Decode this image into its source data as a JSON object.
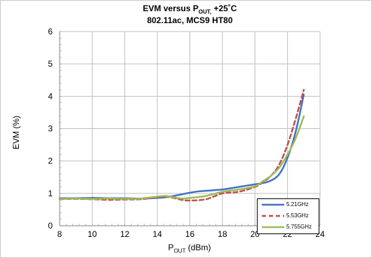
{
  "chart_data": {
    "type": "line",
    "title_line1_main": "EVM versus P",
    "title_line1_sub": "OUT,",
    "title_line1_rest": " +25˚C",
    "title_line2": "802.11ac, MCS9 HT80",
    "xlabel_main": "P",
    "xlabel_sub": "OUT",
    "xlabel_rest": " (dBm)",
    "ylabel": "EVM (%)",
    "xlim": [
      8,
      24
    ],
    "ylim": [
      0,
      6
    ],
    "xticks": [
      8,
      10,
      12,
      14,
      16,
      18,
      20,
      22,
      24
    ],
    "yticks": [
      0,
      1,
      2,
      3,
      4,
      5,
      6
    ],
    "grid": true,
    "legend_position": "bottom-right",
    "series": [
      {
        "name": "5.21GHz",
        "color": "#4472c4",
        "dash": "solid",
        "x": [
          8,
          9,
          10,
          11,
          12,
          13,
          14,
          14.5,
          15,
          15.5,
          16,
          16.5,
          17,
          18,
          19,
          20,
          20.5,
          21,
          21.5,
          22,
          22.5,
          23
        ],
        "y": [
          0.85,
          0.85,
          0.86,
          0.85,
          0.85,
          0.84,
          0.86,
          0.88,
          0.92,
          0.97,
          1.02,
          1.06,
          1.08,
          1.12,
          1.2,
          1.28,
          1.32,
          1.4,
          1.6,
          2.1,
          2.9,
          4.05
        ]
      },
      {
        "name": "5.53GHz",
        "color": "#c0504d",
        "dash": "dashed",
        "x": [
          8,
          9,
          10,
          11,
          12,
          13,
          14,
          14.5,
          15,
          15.5,
          16,
          17,
          18,
          19,
          20,
          20.5,
          21,
          21.5,
          22,
          22.5,
          23
        ],
        "y": [
          0.82,
          0.83,
          0.82,
          0.8,
          0.81,
          0.82,
          0.88,
          0.9,
          0.86,
          0.8,
          0.78,
          0.82,
          1.0,
          1.05,
          1.2,
          1.35,
          1.55,
          1.9,
          2.5,
          3.3,
          4.2
        ]
      },
      {
        "name": "5.755GHz",
        "color": "#9bbb59",
        "dash": "solid",
        "x": [
          8,
          9,
          10,
          11,
          12,
          13,
          14,
          14.5,
          15,
          15.5,
          16,
          17,
          18,
          19,
          20,
          20.5,
          21,
          21.5,
          22,
          22.5,
          23
        ],
        "y": [
          0.83,
          0.84,
          0.83,
          0.84,
          0.83,
          0.84,
          0.9,
          0.92,
          0.88,
          0.84,
          0.86,
          0.92,
          1.05,
          1.12,
          1.22,
          1.38,
          1.55,
          1.8,
          2.2,
          2.7,
          3.38
        ]
      }
    ]
  }
}
